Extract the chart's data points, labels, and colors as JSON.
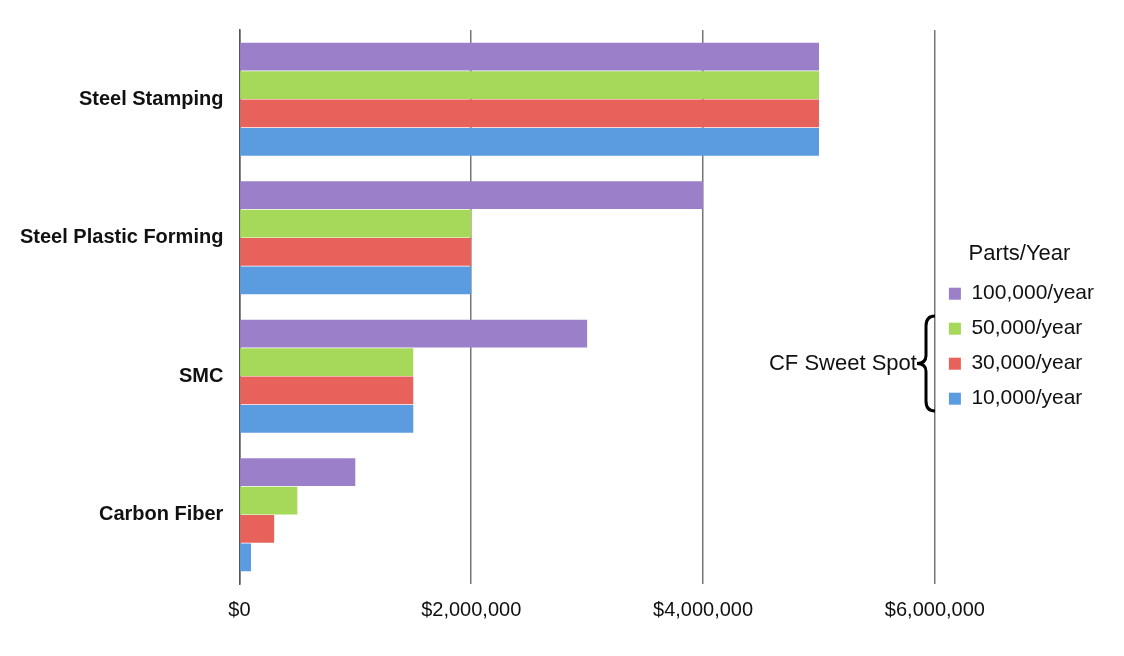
{
  "chart_data": {
    "type": "bar",
    "orientation": "horizontal",
    "categories": [
      "Steel Stamping",
      "Steel Plastic Forming",
      "SMC",
      "Carbon Fiber"
    ],
    "series": [
      {
        "name": "100,000/year",
        "color": "#9b7fc9",
        "values": [
          5000000,
          4000000,
          3000000,
          1000000
        ]
      },
      {
        "name": "50,000/year",
        "color": "#a6d95a",
        "values": [
          5000000,
          2000000,
          1500000,
          500000
        ]
      },
      {
        "name": "30,000/year",
        "color": "#e8625c",
        "values": [
          5000000,
          2000000,
          1500000,
          300000
        ]
      },
      {
        "name": "10,000/year",
        "color": "#5b9ce0",
        "values": [
          5000000,
          2000000,
          1500000,
          100000
        ]
      }
    ],
    "xlim": [
      0,
      6000000
    ],
    "xticks": [
      {
        "value": 0,
        "label": "$0"
      },
      {
        "value": 2000000,
        "label": "$2,000,000"
      },
      {
        "value": 4000000,
        "label": "$4,000,000"
      },
      {
        "value": 6000000,
        "label": "$6,000,000"
      }
    ],
    "grid": "x",
    "legend": "right",
    "legend_title": "Parts/Year",
    "annotations": [
      "CF Sweet Spot"
    ]
  }
}
